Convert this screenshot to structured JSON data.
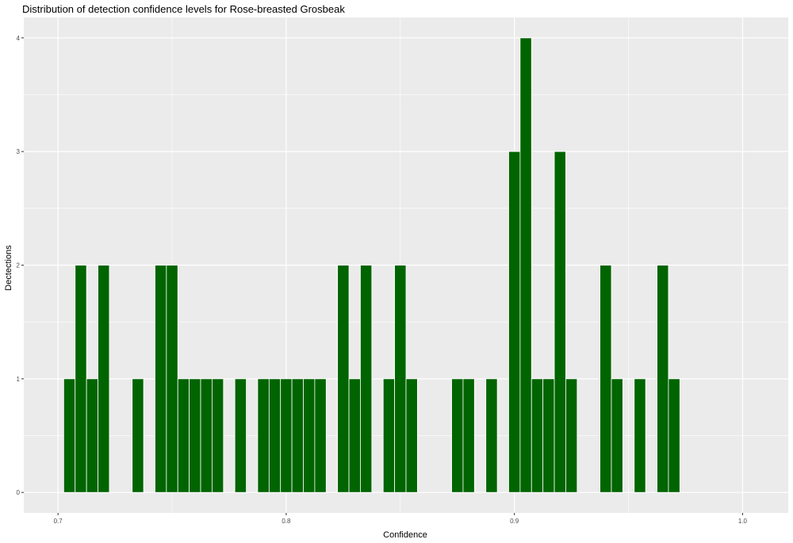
{
  "chart_data": {
    "type": "bar",
    "title": "Distribution of detection confidence levels for Rose-breasted Grosbeak",
    "xlabel": "Confidence",
    "ylabel": "Dectections",
    "xlim": [
      0.685,
      1.02
    ],
    "ylim": [
      -0.18,
      4.18
    ],
    "x_ticks": [
      "0.7",
      "0.8",
      "0.9",
      "1.0"
    ],
    "y_ticks": [
      "0",
      "1",
      "2",
      "3",
      "4"
    ],
    "bin_width": 0.005,
    "bar_color": "#006400",
    "bar_outline": "#ffffff",
    "panel_background": "#ebebeb",
    "grid": true,
    "x": [
      0.705,
      0.71,
      0.715,
      0.72,
      0.735,
      0.745,
      0.75,
      0.755,
      0.76,
      0.765,
      0.77,
      0.78,
      0.79,
      0.795,
      0.8,
      0.805,
      0.81,
      0.815,
      0.825,
      0.83,
      0.835,
      0.845,
      0.85,
      0.855,
      0.875,
      0.88,
      0.89,
      0.9,
      0.905,
      0.91,
      0.915,
      0.92,
      0.925,
      0.94,
      0.945,
      0.955,
      0.965,
      0.97
    ],
    "values": [
      1,
      2,
      1,
      2,
      1,
      2,
      2,
      1,
      1,
      1,
      1,
      1,
      1,
      1,
      1,
      1,
      1,
      1,
      2,
      1,
      2,
      1,
      2,
      1,
      1,
      1,
      1,
      3,
      4,
      1,
      1,
      3,
      1,
      2,
      1,
      1,
      2,
      1
    ]
  }
}
